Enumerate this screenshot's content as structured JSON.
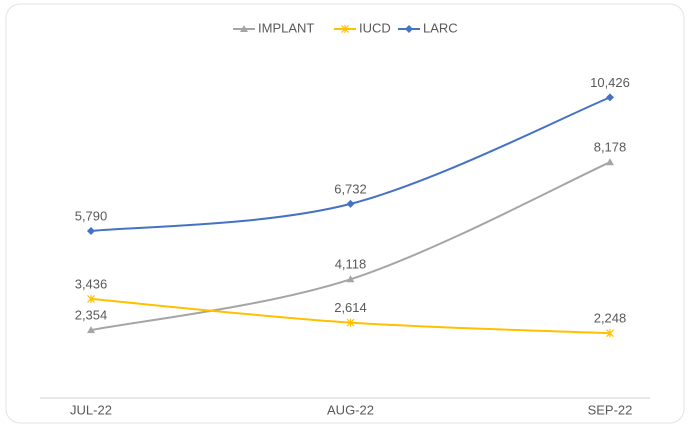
{
  "chart_data": {
    "type": "line",
    "categories": [
      "JUL-22",
      "AUG-22",
      "SEP-22"
    ],
    "series": [
      {
        "name": "IMPLANT",
        "color": "#a5a5a5",
        "marker": "triangle",
        "values": [
          2354,
          4118,
          8178
        ],
        "value_labels": [
          "2,354",
          "4,118",
          "8,178"
        ]
      },
      {
        "name": "IUCD",
        "color": "#ffc000",
        "marker": "x",
        "values": [
          3436,
          2614,
          2248
        ],
        "value_labels": [
          "3,436",
          "2,614",
          "2,248"
        ]
      },
      {
        "name": "LARC",
        "color": "#4472c4",
        "marker": "diamond",
        "values": [
          5790,
          6732,
          10426
        ],
        "value_labels": [
          "5,790",
          "6,732",
          "10,426"
        ]
      }
    ],
    "ylim": [
      0,
      12000
    ],
    "legend": "top",
    "smooth": true
  }
}
